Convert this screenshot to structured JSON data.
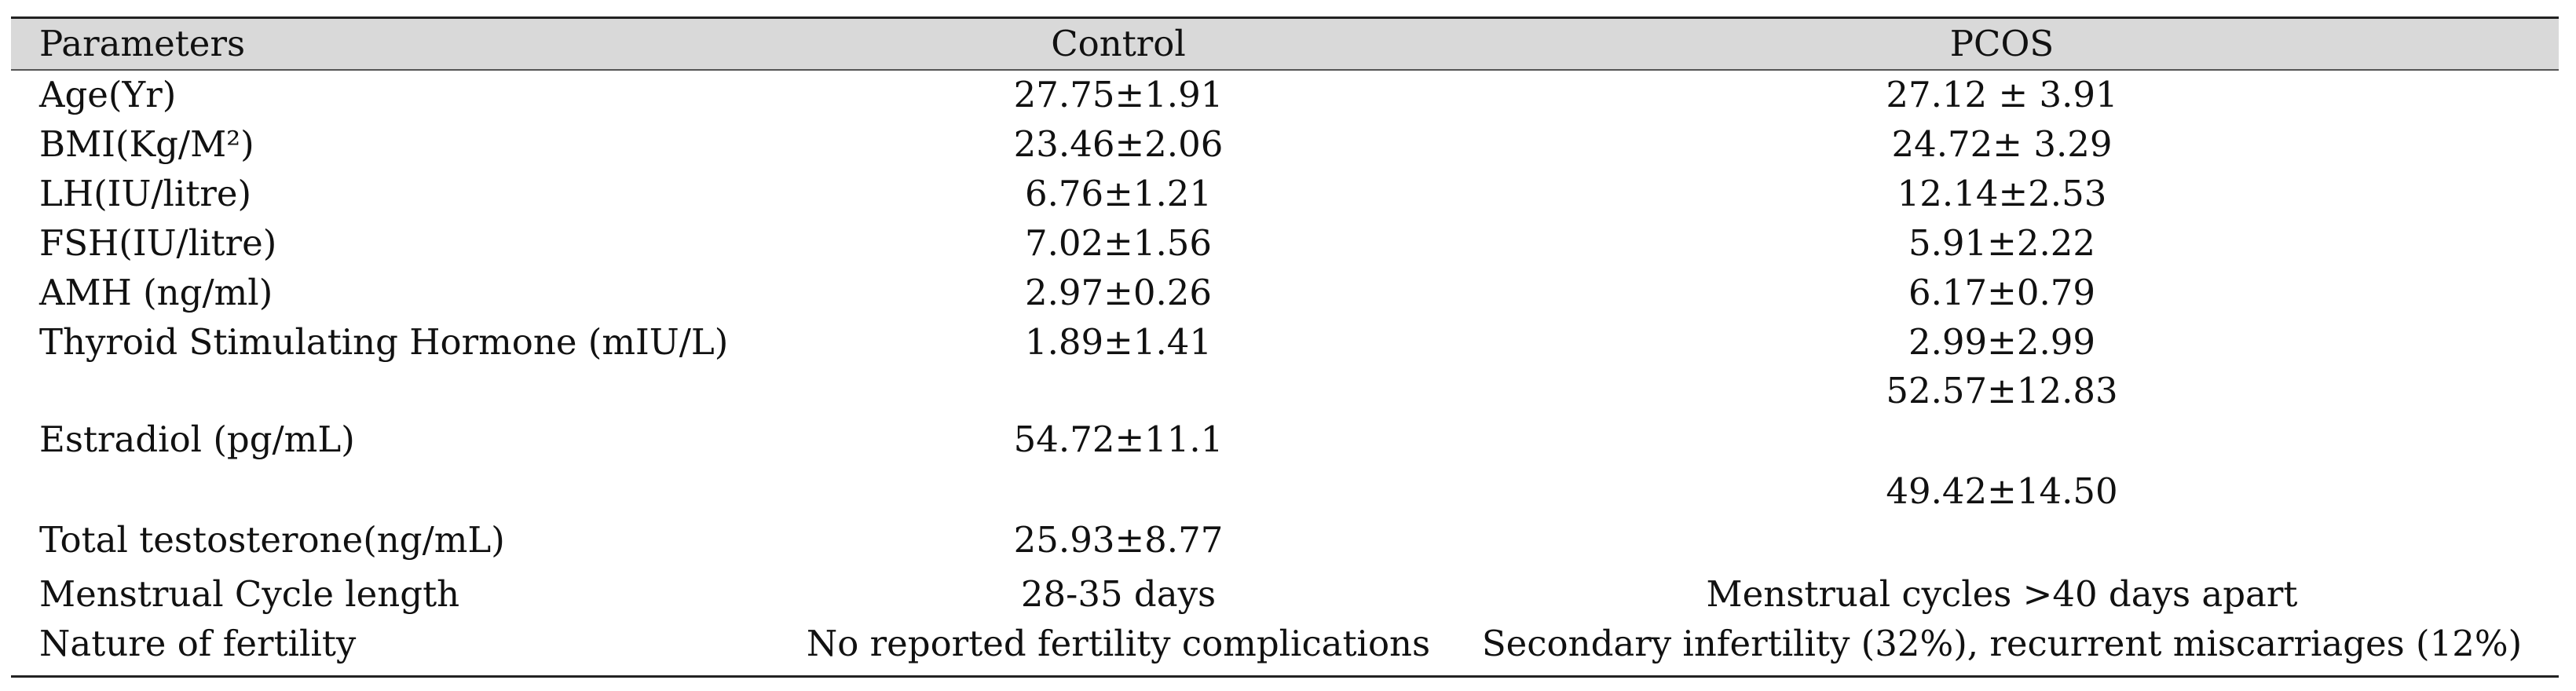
{
  "table": {
    "headers": {
      "parameters": "Parameters",
      "control": "Control",
      "pcos": "PCOS"
    },
    "rows": [
      {
        "parameter": "Age(Yr)",
        "control": "27.75±1.91",
        "pcos": "27.12 ± 3.91"
      },
      {
        "parameter": "BMI(Kg/M²)",
        "control": "23.46±2.06",
        "pcos": "24.72± 3.29"
      },
      {
        "parameter": "LH(IU/litre)",
        "control": "6.76±1.21",
        "pcos": "12.14±2.53"
      },
      {
        "parameter": "FSH(IU/litre)",
        "control": "7.02±1.56",
        "pcos": "5.91±2.22"
      },
      {
        "parameter": "AMH (ng/ml)",
        "control": "2.97±0.26",
        "pcos": "6.17±0.79"
      },
      {
        "parameter": "Thyroid Stimulating Hormone (mIU/L)",
        "control": "1.89±1.41",
        "pcos": "2.99±2.99"
      },
      {
        "parameter": "Estradiol (pg/mL)",
        "control": "54.72±11.1",
        "pcos": "52.57±12.83"
      },
      {
        "parameter": "Total testosterone(ng/mL)",
        "control": "25.93±8.77",
        "pcos": "49.42±14.50"
      },
      {
        "parameter": "Menstrual Cycle length",
        "control": "28-35 days",
        "pcos": "Menstrual cycles >40 days apart"
      },
      {
        "parameter": "Nature of  fertility",
        "control": "No reported fertility complications",
        "pcos": "Secondary infertility (32%), recurrent miscarriages (12%)"
      }
    ]
  }
}
